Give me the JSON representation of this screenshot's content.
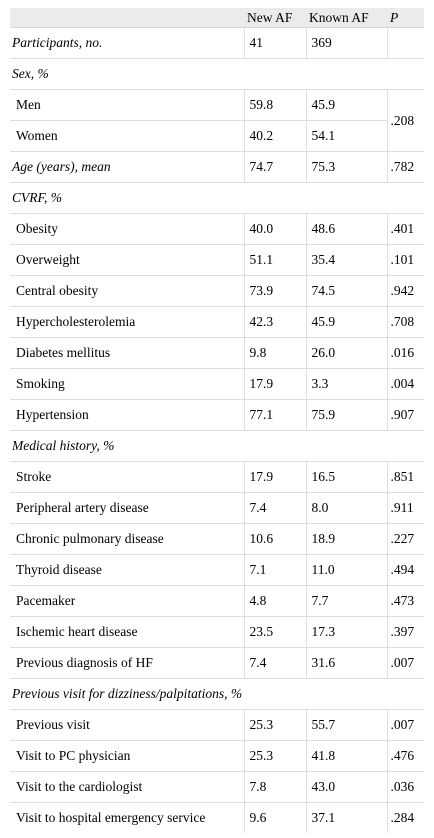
{
  "header": {
    "col0": "",
    "col1": "New AF",
    "col2": "Known AF",
    "col3": "P"
  },
  "rows": [
    {
      "type": "row",
      "label": "Participants, no.",
      "italic": true,
      "new_af": "41",
      "known_af": "369",
      "p": ""
    },
    {
      "type": "section",
      "label": "Sex, %"
    },
    {
      "type": "row",
      "label": "Men",
      "new_af": "59.8",
      "known_af": "45.9",
      "p": ".208",
      "p_rowspan": 2
    },
    {
      "type": "row",
      "label": "Women",
      "new_af": "40.2",
      "known_af": "54.1",
      "p_merged": true
    },
    {
      "type": "row",
      "label": "Age (years), mean",
      "italic": true,
      "new_af": "74.7",
      "known_af": "75.3",
      "p": ".782"
    },
    {
      "type": "section",
      "label": "CVRF, %"
    },
    {
      "type": "row",
      "label": "Obesity",
      "new_af": "40.0",
      "known_af": "48.6",
      "p": ".401"
    },
    {
      "type": "row",
      "label": "Overweight",
      "new_af": "51.1",
      "known_af": "35.4",
      "p": ".101"
    },
    {
      "type": "row",
      "label": "Central obesity",
      "new_af": "73.9",
      "known_af": "74.5",
      "p": ".942"
    },
    {
      "type": "row",
      "label": "Hypercholesterolemia",
      "new_af": "42.3",
      "known_af": "45.9",
      "p": ".708"
    },
    {
      "type": "row",
      "label": "Diabetes mellitus",
      "new_af": "9.8",
      "known_af": "26.0",
      "p": ".016"
    },
    {
      "type": "row",
      "label": "Smoking",
      "new_af": "17.9",
      "known_af": "3.3",
      "p": ".004"
    },
    {
      "type": "row",
      "label": "Hypertension",
      "new_af": "77.1",
      "known_af": "75.9",
      "p": ".907"
    },
    {
      "type": "section",
      "label": "Medical history, %"
    },
    {
      "type": "row",
      "label": "Stroke",
      "new_af": "17.9",
      "known_af": "16.5",
      "p": ".851"
    },
    {
      "type": "row",
      "label": "Peripheral artery disease",
      "new_af": "7.4",
      "known_af": "8.0",
      "p": ".911"
    },
    {
      "type": "row",
      "label": "Chronic pulmonary disease",
      "new_af": "10.6",
      "known_af": "18.9",
      "p": ".227"
    },
    {
      "type": "row",
      "label": "Thyroid disease",
      "new_af": "7.1",
      "known_af": "11.0",
      "p": ".494"
    },
    {
      "type": "row",
      "label": "Pacemaker",
      "new_af": "4.8",
      "known_af": "7.7",
      "p": ".473"
    },
    {
      "type": "row",
      "label": "Ischemic heart disease",
      "new_af": "23.5",
      "known_af": "17.3",
      "p": ".397"
    },
    {
      "type": "row",
      "label": "Previous diagnosis of HF",
      "new_af": "7.4",
      "known_af": "31.6",
      "p": ".007"
    },
    {
      "type": "section",
      "label": "Previous visit for dizziness/palpitations, %"
    },
    {
      "type": "row",
      "label": "Previous visit",
      "new_af": "25.3",
      "known_af": "55.7",
      "p": ".007"
    },
    {
      "type": "row",
      "label": "Visit to PC physician",
      "new_af": "25.3",
      "known_af": "41.8",
      "p": ".476"
    },
    {
      "type": "row",
      "label": "Visit to the cardiologist",
      "new_af": "7.8",
      "known_af": "43.0",
      "p": ".036"
    },
    {
      "type": "row",
      "label": "Visit to hospital emergency service",
      "new_af": "9.6",
      "known_af": "37.1",
      "p": ".284"
    }
  ]
}
